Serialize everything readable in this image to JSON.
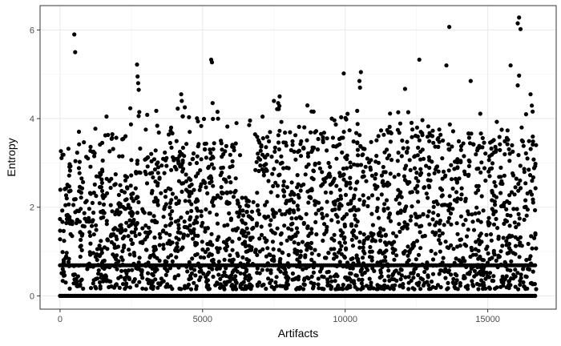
{
  "chart_data": {
    "type": "scatter",
    "title": "",
    "xlabel": "Artifacts",
    "ylabel": "Entropy",
    "xlim": [
      -700,
      17400
    ],
    "ylim": [
      -0.3,
      6.55
    ],
    "x_ticks": [
      0,
      5000,
      10000,
      15000
    ],
    "y_ticks": [
      0,
      2,
      4,
      6
    ],
    "grid": true,
    "legend": "none",
    "point_color": "#000000",
    "n_points": 16700,
    "highlight_points": [
      {
        "x": 500,
        "y": 5.9
      },
      {
        "x": 530,
        "y": 5.5
      },
      {
        "x": 2700,
        "y": 5.22
      },
      {
        "x": 2720,
        "y": 4.95
      },
      {
        "x": 2740,
        "y": 4.8
      },
      {
        "x": 2760,
        "y": 4.65
      },
      {
        "x": 2780,
        "y": 4.15
      },
      {
        "x": 4250,
        "y": 4.55
      },
      {
        "x": 4270,
        "y": 4.4
      },
      {
        "x": 4300,
        "y": 4.05
      },
      {
        "x": 5300,
        "y": 5.33
      },
      {
        "x": 5330,
        "y": 5.27
      },
      {
        "x": 5350,
        "y": 4.35
      },
      {
        "x": 7500,
        "y": 4.4
      },
      {
        "x": 7700,
        "y": 4.5
      },
      {
        "x": 7650,
        "y": 4.35
      },
      {
        "x": 9950,
        "y": 5.02
      },
      {
        "x": 10550,
        "y": 5.05
      },
      {
        "x": 10500,
        "y": 4.85
      },
      {
        "x": 10520,
        "y": 4.7
      },
      {
        "x": 12100,
        "y": 4.67
      },
      {
        "x": 12600,
        "y": 5.33
      },
      {
        "x": 13550,
        "y": 5.2
      },
      {
        "x": 13650,
        "y": 6.07
      },
      {
        "x": 14400,
        "y": 4.85
      },
      {
        "x": 15800,
        "y": 5.2
      },
      {
        "x": 16050,
        "y": 6.15
      },
      {
        "x": 16100,
        "y": 6.28
      },
      {
        "x": 16150,
        "y": 6.02
      },
      {
        "x": 16100,
        "y": 4.97
      },
      {
        "x": 16050,
        "y": 4.75
      },
      {
        "x": 16500,
        "y": 4.55
      }
    ]
  }
}
